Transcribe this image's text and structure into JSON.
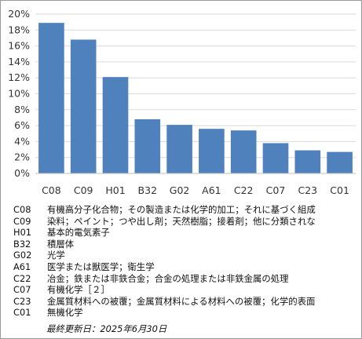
{
  "chart_data": {
    "type": "bar",
    "categories": [
      "C08",
      "C09",
      "H01",
      "B32",
      "G02",
      "A61",
      "C22",
      "C07",
      "C23",
      "C01"
    ],
    "values": [
      18.9,
      16.8,
      12.1,
      6.8,
      6.1,
      5.6,
      5.4,
      3.8,
      2.9,
      2.7
    ],
    "ylim": [
      0,
      20
    ],
    "yticks": [
      "0%",
      "2%",
      "4%",
      "6%",
      "8%",
      "10%",
      "12%",
      "14%",
      "16%",
      "18%",
      "20%"
    ],
    "grid": true,
    "bar_color": "#4f81bd"
  },
  "legend": [
    {
      "code": "C08",
      "desc": "有機高分子化合物；その製造または化学的加工；それに基づく組成"
    },
    {
      "code": "C09",
      "desc": "染料；ペイント；つや出し剤；天然樹脂；接着剤；他に分類されな"
    },
    {
      "code": "H01",
      "desc": "基本的電気素子"
    },
    {
      "code": "B32",
      "desc": "積層体"
    },
    {
      "code": "G02",
      "desc": "光学"
    },
    {
      "code": "A61",
      "desc": "医学または獣医学；衛生学"
    },
    {
      "code": "C22",
      "desc": "冶金；鉄または非鉄合金；合金の処理または非鉄金属の処理"
    },
    {
      "code": "C07",
      "desc": "有機化学［２］"
    },
    {
      "code": "C23",
      "desc": "金属質材料への被覆；金属質材料による材料への被覆；化学的表面"
    },
    {
      "code": "C01",
      "desc": "無機化学"
    }
  ],
  "footer": {
    "updated": "最終更新日：2025年6月30日"
  }
}
